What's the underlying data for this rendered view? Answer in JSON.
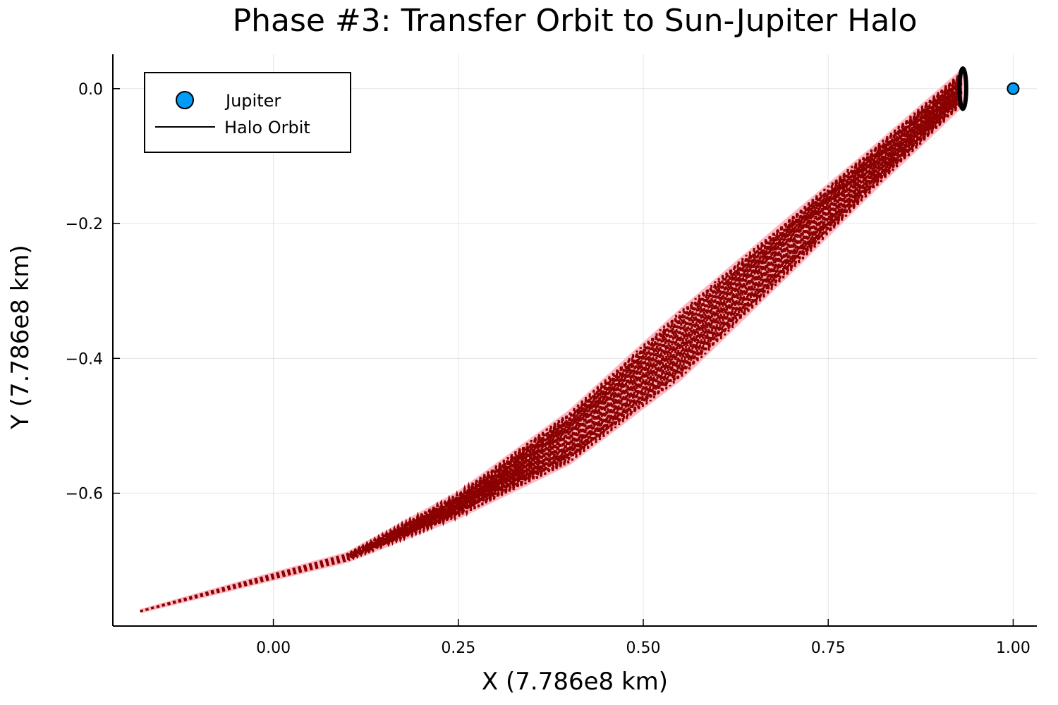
{
  "chart_data": {
    "type": "line",
    "title": "Phase #3: Transfer Orbit to Sun-Jupiter Halo",
    "xlabel": "X (7.786e8 km)",
    "ylabel": "Y (7.786e8 km)",
    "xlim": [
      -0.217,
      1.032
    ],
    "ylim": [
      -0.797,
      0.051
    ],
    "xticks": [
      0.0,
      0.25,
      0.5,
      0.75,
      1.0
    ],
    "xtick_labels": [
      "0.00",
      "0.25",
      "0.50",
      "0.75",
      "1.00"
    ],
    "yticks": [
      0.0,
      -0.2,
      -0.4,
      -0.6
    ],
    "ytick_labels": [
      "0.0",
      "−0.2",
      "−0.4",
      "−0.6"
    ],
    "grid": true,
    "legend_position": "top-left",
    "series": [
      {
        "name": "Jupiter",
        "kind": "scatter",
        "color": "#009af9",
        "x": [
          1.0
        ],
        "y": [
          0.0
        ]
      },
      {
        "name": "Halo Orbit",
        "kind": "line",
        "color": "#000000",
        "center": [
          0.932,
          0.0
        ],
        "x_amplitude": 0.0045,
        "y_amplitude": 0.03
      },
      {
        "kind": "band",
        "band_color": "#ffb6c1",
        "stitch_color": "#8b0000",
        "upper_edge": [
          [
            -0.18,
            -0.775
          ],
          [
            -0.05,
            -0.735
          ],
          [
            0.1,
            -0.69
          ],
          [
            0.25,
            -0.6
          ],
          [
            0.4,
            -0.48
          ],
          [
            0.55,
            -0.33
          ],
          [
            0.7,
            -0.19
          ],
          [
            0.82,
            -0.08
          ],
          [
            0.93,
            0.025
          ]
        ],
        "lower_edge": [
          [
            -0.18,
            -0.775
          ],
          [
            -0.05,
            -0.74
          ],
          [
            0.1,
            -0.7
          ],
          [
            0.25,
            -0.635
          ],
          [
            0.4,
            -0.555
          ],
          [
            0.55,
            -0.43
          ],
          [
            0.7,
            -0.27
          ],
          [
            0.82,
            -0.14
          ],
          [
            0.93,
            -0.025
          ]
        ]
      }
    ]
  }
}
